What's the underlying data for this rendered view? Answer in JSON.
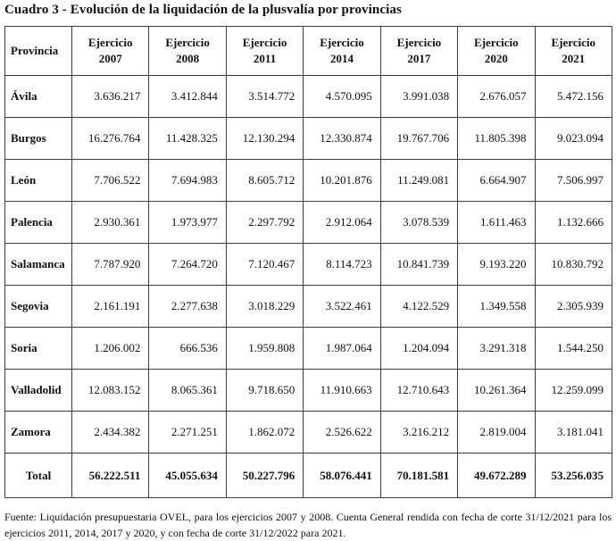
{
  "title": "Cuadro 3 - Evolución de la liquidación de la plusvalía por provincias",
  "table": {
    "columns": [
      "Provincia",
      "Ejercicio\n2007",
      "Ejercicio\n2008",
      "Ejercicio\n2011",
      "Ejercicio\n2014",
      "Ejercicio\n2017",
      "Ejercicio\n2020",
      "Ejercicio\n2021"
    ],
    "rows": [
      {
        "provincia": "Ávila",
        "values": [
          "3.636.217",
          "3.412.844",
          "3.514.772",
          "4.570.095",
          "3.991.038",
          "2.676.057",
          "5.472.156"
        ]
      },
      {
        "provincia": "Burgos",
        "values": [
          "16.276.764",
          "11.428.325",
          "12.130.294",
          "12.330.874",
          "19.767.706",
          "11.805.398",
          "9.023.094"
        ]
      },
      {
        "provincia": "León",
        "values": [
          "7.706.522",
          "7.694.983",
          "8.605.712",
          "10.201.876",
          "11.249.081",
          "6.664.907",
          "7.506.997"
        ]
      },
      {
        "provincia": "Palencia",
        "values": [
          "2.930.361",
          "1.973.977",
          "2.297.792",
          "2.912.064",
          "3.078.539",
          "1.611.463",
          "1.132.666"
        ]
      },
      {
        "provincia": "Salamanca",
        "values": [
          "7.787.920",
          "7.264.720",
          "7.120.467",
          "8.114.723",
          "10.841.739",
          "9.193.220",
          "10.830.792"
        ]
      },
      {
        "provincia": "Segovia",
        "values": [
          "2.161.191",
          "2.277.638",
          "3.018.229",
          "3.522.461",
          "4.122.529",
          "1.349.558",
          "2.305.939"
        ]
      },
      {
        "provincia": "Soria",
        "values": [
          "1.206.002",
          "666.536",
          "1.959.808",
          "1.987.064",
          "1.204.094",
          "3.291.318",
          "1.544.250"
        ]
      },
      {
        "provincia": "Valladolid",
        "values": [
          "12.083.152",
          "8.065.361",
          "9.718.650",
          "11.910.663",
          "12.710.643",
          "10.261.364",
          "12.259.099"
        ]
      },
      {
        "provincia": "Zamora",
        "values": [
          "2.434.382",
          "2.271.251",
          "1.862.072",
          "2.526.622",
          "3.216.212",
          "2.819.004",
          "3.181.041"
        ]
      }
    ],
    "total_row": {
      "label": "Total",
      "values": [
        "56.222.511",
        "45.055.634",
        "50.227.796",
        "58.076.441",
        "70.181.581",
        "49.672.289",
        "53.256.035"
      ]
    }
  },
  "footnote": "Fuente: Liquidación presupuestaria OVEL, para los ejercicios 2007 y 2008. Cuenta General rendida con fecha de corte 31/12/2021 para los ejercicios 2011, 2014, 2017 y 2020, y con fecha de corte 31/12/2022 para 2021."
}
